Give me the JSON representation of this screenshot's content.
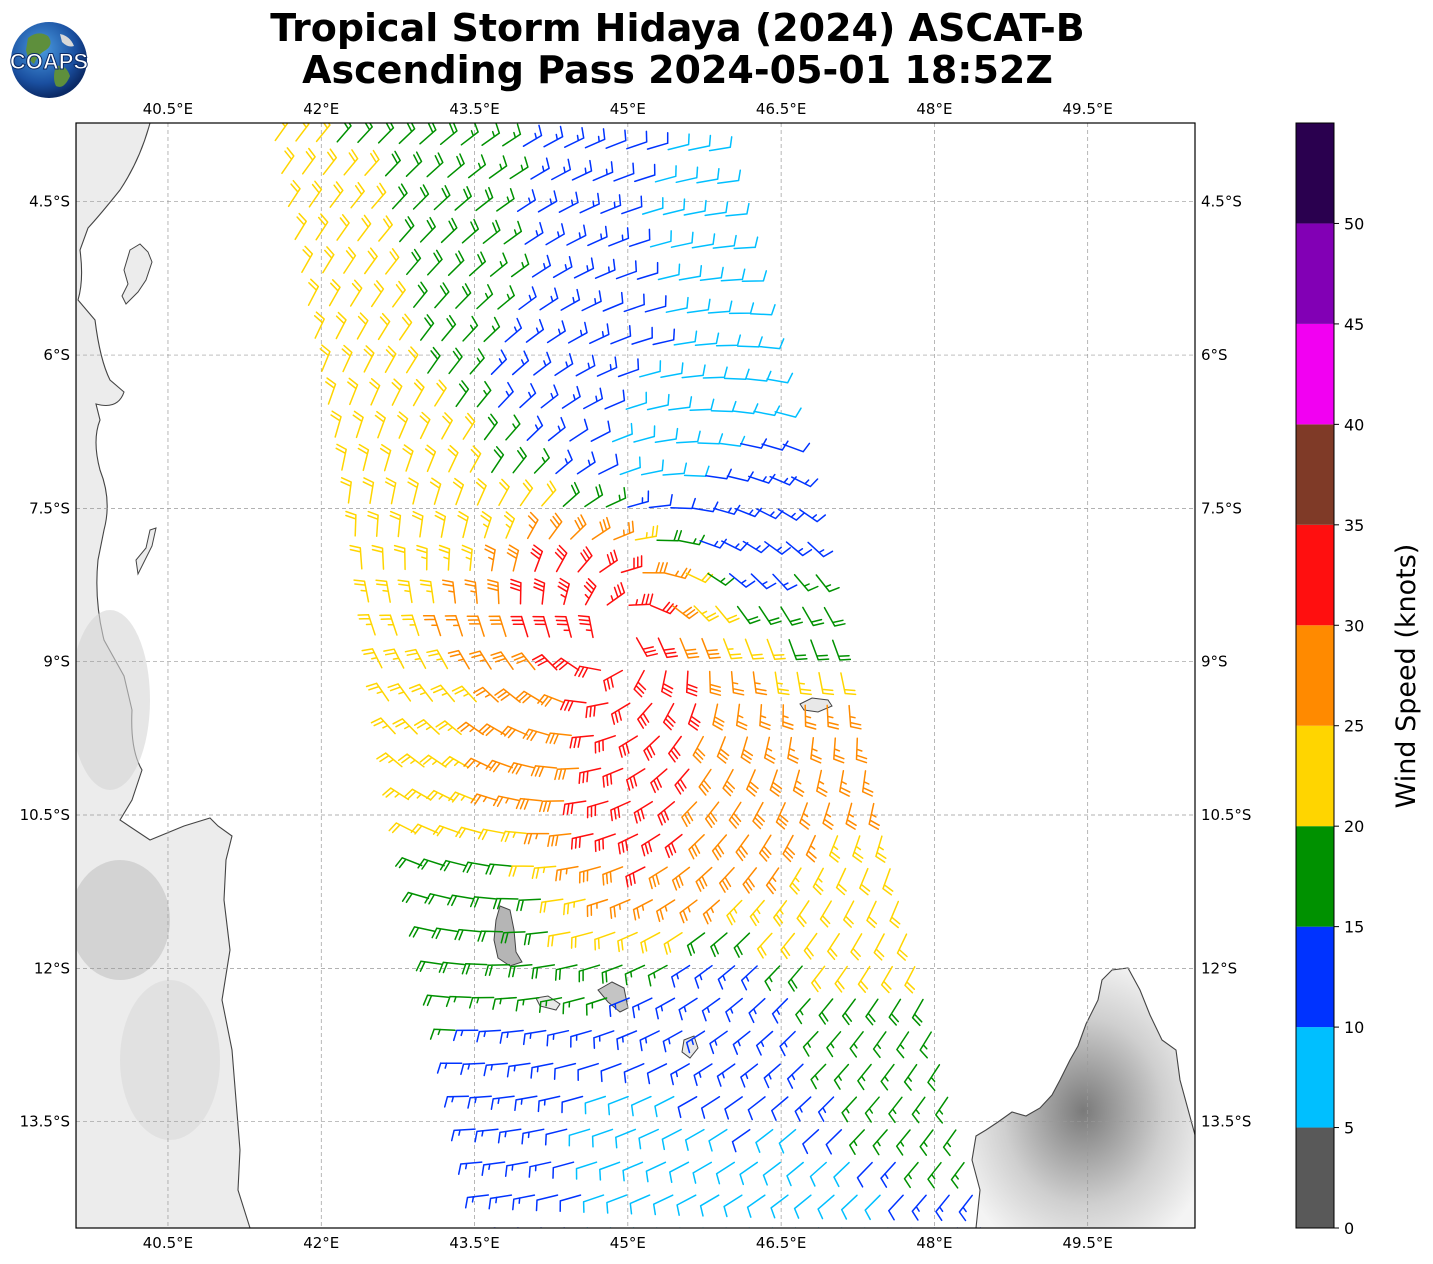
{
  "title": {
    "line1": "Tropical Storm Hidaya (2024) ASCAT-B",
    "line2": "Ascending Pass 2024-05-01 18:52Z"
  },
  "logo": {
    "text": "COAPS",
    "icon": "earth-globe-icon"
  },
  "map": {
    "projection": "plate-carree",
    "lon_range": [
      39.6,
      50.55
    ],
    "lat_range": [
      -14.54,
      -3.73
    ],
    "lon_ticks": [
      "40.5°E",
      "42°E",
      "43.5°E",
      "45°E",
      "46.5°E",
      "48°E",
      "49.5°E"
    ],
    "lon_tick_values": [
      40.5,
      42,
      43.5,
      45,
      46.5,
      48,
      49.5
    ],
    "lat_ticks": [
      "4.5°S",
      "6°S",
      "7.5°S",
      "9°S",
      "10.5°S",
      "12°S",
      "13.5°S"
    ],
    "lat_tick_values": [
      -4.5,
      -6,
      -7.5,
      -9,
      -10.5,
      -12,
      -13.5
    ],
    "gridlines": true,
    "storm_center": {
      "lon": 44.9,
      "lat": -8.8
    }
  },
  "colorbar": {
    "label": "Wind Speed (knots)",
    "ticks": [
      "0",
      "5",
      "10",
      "15",
      "20",
      "25",
      "30",
      "35",
      "40",
      "45",
      "50"
    ],
    "bins": [
      {
        "min": 0,
        "max": 5,
        "color": "#595959"
      },
      {
        "min": 5,
        "max": 10,
        "color": "#00bfff"
      },
      {
        "min": 10,
        "max": 15,
        "color": "#0033ff"
      },
      {
        "min": 15,
        "max": 20,
        "color": "#009100"
      },
      {
        "min": 20,
        "max": 25,
        "color": "#ffd500"
      },
      {
        "min": 25,
        "max": 30,
        "color": "#ff8a00"
      },
      {
        "min": 30,
        "max": 35,
        "color": "#ff0f0f"
      },
      {
        "min": 35,
        "max": 40,
        "color": "#7f3a27"
      },
      {
        "min": 40,
        "max": 45,
        "color": "#f200f2"
      },
      {
        "min": 45,
        "max": 50,
        "color": "#8200b5"
      },
      {
        "min": 50,
        "max": 55,
        "color": "#2a004f"
      }
    ]
  },
  "chart_data": {
    "type": "wind-barb-map",
    "variable": "Wind Speed (knots)",
    "swath_corners": [
      [
        41.55,
        -3.9
      ],
      [
        45.8,
        -4.0
      ],
      [
        48.45,
        -14.54
      ],
      [
        43.7,
        -14.54
      ]
    ],
    "wind_field": "cyclonic rotation around storm center near 44.9°E 8.8°S; peak 30-35 kt in southern/southwestern quadrant; 20-25 kt west of center, 10-20 kt north, 15-25 kt southeast, 5-15 kt in far south",
    "speed_zones": [
      {
        "lon": 44.65,
        "lat": -8.55,
        "speed": 33
      },
      {
        "lon": 45.15,
        "lat": -10.3,
        "speed": 32
      },
      {
        "lon": 45.0,
        "lat": -9.3,
        "speed": 31
      },
      {
        "lon": 46.1,
        "lat": -10.4,
        "speed": 29
      },
      {
        "lon": 44.0,
        "lat": -9.8,
        "speed": 28
      },
      {
        "lon": 46.8,
        "lat": -9.8,
        "speed": 27
      },
      {
        "lon": 43.2,
        "lat": -9.8,
        "speed": 23
      },
      {
        "lon": 42.8,
        "lat": -7.2,
        "speed": 22
      },
      {
        "lon": 47.3,
        "lat": -11.4,
        "speed": 22
      },
      {
        "lon": 42.3,
        "lat": -5.2,
        "speed": 22
      },
      {
        "lon": 43.2,
        "lat": -5.0,
        "speed": 18
      },
      {
        "lon": 43.5,
        "lat": -11.3,
        "speed": 18
      },
      {
        "lon": 47.2,
        "lat": -8.6,
        "speed": 18
      },
      {
        "lon": 47.7,
        "lat": -13.2,
        "speed": 17
      },
      {
        "lon": 44.6,
        "lat": -4.8,
        "speed": 13
      },
      {
        "lon": 44.3,
        "lat": -6.2,
        "speed": 13
      },
      {
        "lon": 46.3,
        "lat": -7.6,
        "speed": 13
      },
      {
        "lon": 46.0,
        "lat": -12.6,
        "speed": 13
      },
      {
        "lon": 43.9,
        "lat": -13.6,
        "speed": 13
      },
      {
        "lon": 45.6,
        "lat": -4.8,
        "speed": 8
      },
      {
        "lon": 45.3,
        "lat": -6.8,
        "speed": 8
      },
      {
        "lon": 46.4,
        "lat": -6.2,
        "speed": 8
      },
      {
        "lon": 45.2,
        "lat": -13.8,
        "speed": 8
      },
      {
        "lon": 46.8,
        "lat": -14.2,
        "speed": 8
      }
    ]
  }
}
